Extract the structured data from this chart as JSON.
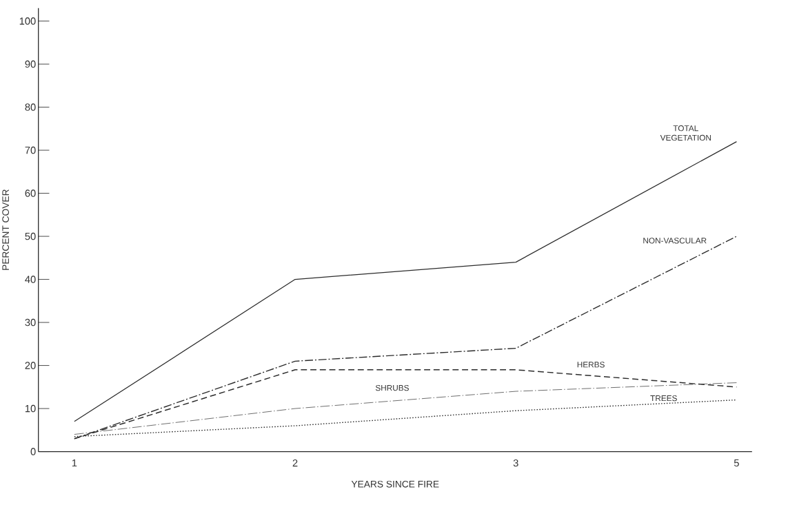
{
  "chart_data": {
    "type": "line",
    "xlabel": "YEARS SINCE FIRE",
    "ylabel": "PERCENT COVER",
    "categories": [
      "1",
      "2",
      "3",
      "5"
    ],
    "ylim": [
      0,
      103
    ],
    "yticks": [
      0,
      10,
      20,
      30,
      40,
      50,
      60,
      70,
      80,
      90,
      100
    ],
    "grid": false,
    "legend": false,
    "marker": "none",
    "series": [
      {
        "name": "TOTAL VEGETATION",
        "color": "#2b2b2b",
        "line_style": "solid",
        "values": [
          7,
          40,
          44,
          72
        ]
      },
      {
        "name": "NON-VASCULAR",
        "color": "#2b2b2b",
        "line_style": "dashdot",
        "values": [
          3,
          21,
          24,
          50
        ]
      },
      {
        "name": "HERBS",
        "color": "#2b2b2b",
        "line_style": "dashed",
        "values": [
          3,
          19,
          19,
          15
        ]
      },
      {
        "name": "SHRUBS",
        "color": "#2b2b2b",
        "line_style": "dashdotdot",
        "values": [
          4,
          10,
          14,
          16
        ]
      },
      {
        "name": "TREES",
        "color": "#2b2b2b",
        "line_style": "dotted",
        "values": [
          3.5,
          6,
          9.5,
          12
        ]
      }
    ]
  }
}
